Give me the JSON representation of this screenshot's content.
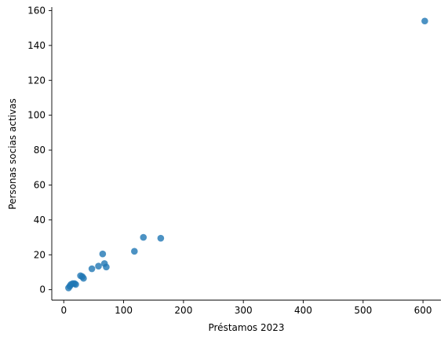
{
  "chart_data": {
    "type": "scatter",
    "title": "",
    "xlabel": "Préstamos 2023",
    "ylabel": "Personas socias activas",
    "xlim": [
      -20,
      630
    ],
    "ylim": [
      -6,
      162
    ],
    "xticks": [
      0,
      100,
      200,
      300,
      400,
      500,
      600
    ],
    "yticks": [
      0,
      20,
      40,
      60,
      80,
      100,
      120,
      140,
      160
    ],
    "grid": false,
    "color": "#1f77b4",
    "points": [
      {
        "x": 8,
        "y": 1
      },
      {
        "x": 10,
        "y": 2
      },
      {
        "x": 12,
        "y": 3
      },
      {
        "x": 15,
        "y": 3.5
      },
      {
        "x": 18,
        "y": 3.5
      },
      {
        "x": 20,
        "y": 3
      },
      {
        "x": 28,
        "y": 8
      },
      {
        "x": 31,
        "y": 7.5
      },
      {
        "x": 33,
        "y": 6.5
      },
      {
        "x": 47,
        "y": 12
      },
      {
        "x": 58,
        "y": 13.5
      },
      {
        "x": 65,
        "y": 20.5
      },
      {
        "x": 68,
        "y": 15
      },
      {
        "x": 71,
        "y": 13
      },
      {
        "x": 118,
        "y": 22
      },
      {
        "x": 133,
        "y": 30
      },
      {
        "x": 162,
        "y": 29.5
      },
      {
        "x": 603,
        "y": 154
      }
    ]
  }
}
